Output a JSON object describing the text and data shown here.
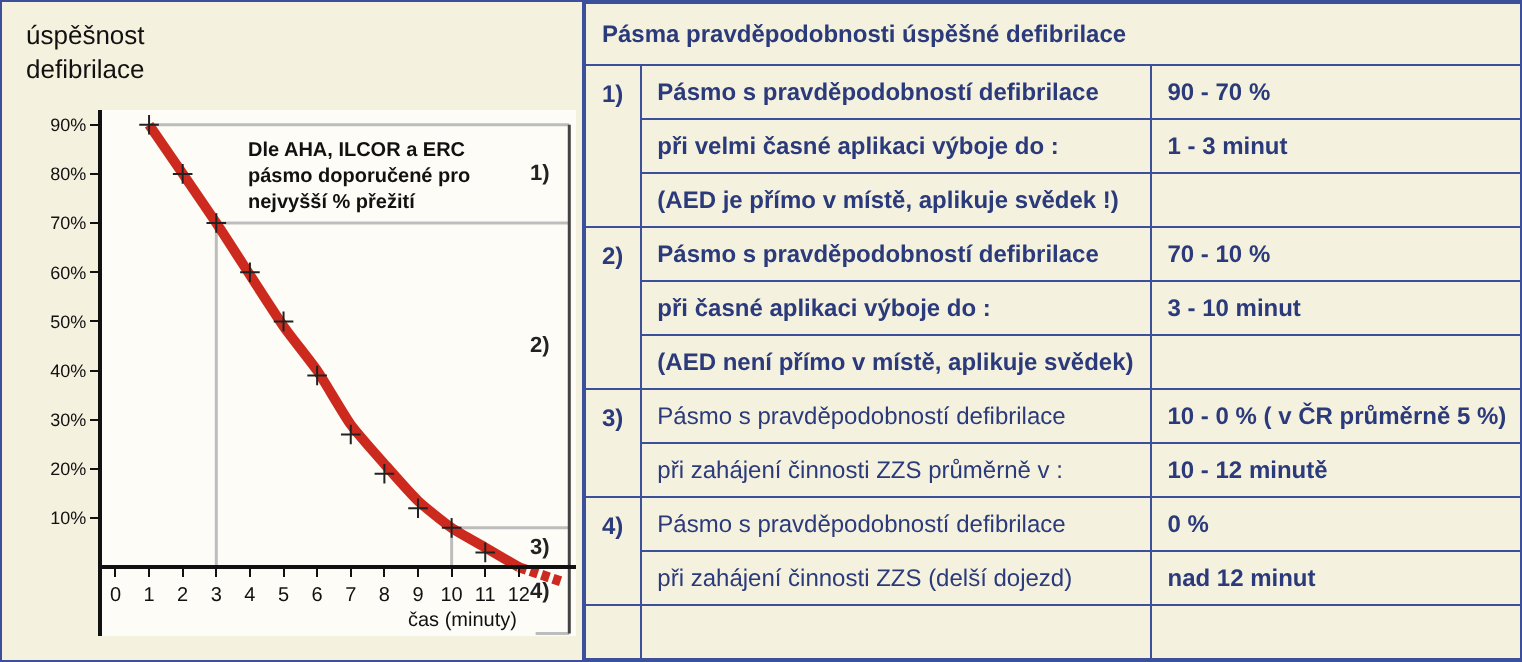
{
  "chart_data": [
    {
      "type": "line",
      "ylabel": "úspěšnost defibrilace",
      "xlabel": "čas (minuty)",
      "xlim": [
        -0.4,
        13.7
      ],
      "ylim": [
        -14,
        93
      ],
      "xticks": [
        0,
        1,
        2,
        3,
        4,
        5,
        6,
        7,
        8,
        9,
        10,
        11,
        12
      ],
      "yticks": [
        {
          "value": 10,
          "label": "10%"
        },
        {
          "value": 20,
          "label": "20%"
        },
        {
          "value": 30,
          "label": "30%"
        },
        {
          "value": 40,
          "label": "40%"
        },
        {
          "value": 50,
          "label": "50%"
        },
        {
          "value": 60,
          "label": "60%"
        },
        {
          "value": 70,
          "label": "70%"
        },
        {
          "value": 80,
          "label": "80%"
        },
        {
          "value": 90,
          "label": "90%"
        }
      ],
      "series": [
        {
          "type": "line",
          "color": "#bdbdbd",
          "x": [
            1,
            13.5
          ],
          "values": [
            90,
            90
          ],
          "marker": "none"
        },
        {
          "type": "line",
          "color": "#bdbdbd",
          "x": [
            3,
            13.5
          ],
          "values": [
            70,
            70
          ],
          "marker": "none"
        },
        {
          "type": "line",
          "color": "#bdbdbd",
          "x": [
            3,
            3
          ],
          "values": [
            0,
            70
          ],
          "marker": "none"
        },
        {
          "type": "line",
          "color": "#bdbdbd",
          "x": [
            10,
            13.5
          ],
          "values": [
            8,
            8
          ],
          "marker": "none"
        },
        {
          "type": "line",
          "color": "#bdbdbd",
          "x": [
            10,
            10
          ],
          "values": [
            0,
            8
          ],
          "marker": "none"
        },
        {
          "type": "line",
          "color": "#bdbdbd",
          "x": [
            12.5,
            13.5
          ],
          "values": [
            -13.5,
            -13.5
          ],
          "marker": "none"
        },
        {
          "type": "line",
          "color": "#cc2a1e",
          "x": [
            1,
            3,
            5,
            6,
            7,
            8,
            9,
            10,
            11,
            12
          ],
          "values": [
            90,
            70,
            49,
            40,
            29,
            21,
            13.5,
            8,
            4,
            0
          ],
          "marker": "none",
          "line_style": "solid"
        },
        {
          "type": "line",
          "color": "#cc2a1e",
          "x": [
            12,
            13.3
          ],
          "values": [
            0,
            -3
          ],
          "marker": "none",
          "line_style": "dashed"
        },
        {
          "type": "line",
          "color": "#444444",
          "x": [
            13.5,
            13.5,
            13.5,
            13.5,
            13.5
          ],
          "values": [
            90,
            70,
            8,
            0,
            -13.5
          ],
          "marker": "none"
        },
        {
          "type": "scatter",
          "color": "#222222",
          "x": [
            1,
            2,
            3,
            4,
            5,
            6,
            7,
            8,
            9,
            10,
            11
          ],
          "values": [
            90,
            80,
            70,
            60,
            50,
            39,
            27,
            19,
            12,
            8,
            3
          ],
          "marker": "cross"
        }
      ],
      "annotations": [
        "Dle AHA, ILCOR a ERC\npásmo doporučené pro\nnejvyšší % přežití",
        "1)",
        "2)",
        "3)",
        "4)"
      ]
    },
    {
      "type": "other",
      "title": "Pásma pravděpodobnosti úspěšné defibrilace",
      "annotations": [
        "1)",
        "Pásmo s pravděpodobností defibrilace",
        "90 - 70 %",
        "při velmi časné aplikaci výboje do :",
        "1 - 3 minut",
        "(AED je přímo v místě, aplikuje svědek !)",
        "2)",
        "Pásmo s pravděpodobností defibrilace",
        "70 - 10 %",
        "při časné aplikaci výboje do :",
        "3 - 10 minut",
        "(AED není přímo v místě, aplikuje svědek)",
        "3)",
        "Pásmo s pravděpodobností defibrilace",
        "10 - 0 % ( v ČR průměrně 5 %)",
        "při zahájení činnosti ZZS průměrně v :",
        "10 - 12 minutě",
        "4)",
        "Pásmo s pravděpodobností defibrilace",
        "0 %",
        "při zahájení činnosti ZZS (delší dojezd)",
        "nad 12 minut"
      ]
    }
  ]
}
